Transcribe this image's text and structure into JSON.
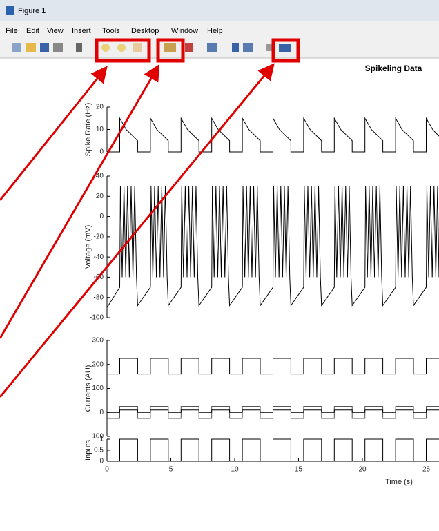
{
  "window": {
    "title": "Figure 1",
    "menu": [
      "File",
      "Edit",
      "View",
      "Insert",
      "Tools",
      "Desktop",
      "Window",
      "Help"
    ]
  },
  "chart_data": [
    {
      "type": "line",
      "title": "Spikeling Data",
      "ylabel": "Spike Rate (Hz)",
      "xlim": [
        0,
        26
      ],
      "ylim": [
        0,
        20
      ],
      "yticks": [
        0,
        10,
        20
      ],
      "x": [
        0,
        1,
        1,
        1.5,
        2.4,
        2.4,
        3.4,
        3.4,
        3.9,
        4.8,
        4.8,
        5.8,
        5.8,
        6.3,
        7.2,
        7.2,
        8.2,
        8.2,
        8.7,
        9.6,
        9.6,
        10.6,
        10.6,
        11.1,
        12,
        12,
        13,
        13,
        13.5,
        14.4,
        14.4,
        15.4,
        15.4,
        15.9,
        16.8,
        16.8,
        17.8,
        17.8,
        18.3,
        19.2,
        19.2,
        20.2,
        20.2,
        20.7,
        21.6,
        21.6,
        22.6,
        22.6,
        23.1,
        24,
        24,
        25,
        25,
        25.5,
        26
      ],
      "series": [
        {
          "color": "#000000",
          "values": [
            0,
            0,
            15,
            10,
            5,
            0,
            0,
            15,
            10,
            5,
            0,
            0,
            15,
            10,
            5,
            0,
            0,
            15,
            10,
            5,
            0,
            0,
            15,
            10,
            5,
            0,
            0,
            15,
            10,
            5,
            0,
            0,
            15,
            10,
            5,
            0,
            0,
            15,
            10,
            5,
            0,
            0,
            15,
            10,
            5,
            0,
            0,
            15,
            10,
            5,
            0,
            0,
            15,
            10,
            7
          ]
        }
      ]
    },
    {
      "type": "line",
      "ylabel": "Voltage (mV)",
      "xlim": [
        0,
        26
      ],
      "ylim": [
        -100,
        40
      ],
      "yticks": [
        -100,
        -80,
        -60,
        -40,
        -20,
        0,
        20,
        40
      ],
      "x": [
        0,
        0.5,
        1,
        1.05,
        1.19,
        1.33,
        1.47,
        1.61,
        1.75,
        1.89,
        2.03,
        2.17,
        2.31,
        2.4,
        3.4,
        3.45,
        3.59,
        3.73,
        3.87,
        4.01,
        4.15,
        4.29,
        4.43,
        4.57,
        4.71,
        4.8,
        5.8,
        5.85,
        5.99,
        6.13,
        6.27,
        6.41,
        6.55,
        6.69,
        6.83,
        6.97,
        7.11,
        7.2,
        8.2,
        8.25,
        8.39,
        8.53,
        8.67,
        8.81,
        8.95,
        9.09,
        9.23,
        9.37,
        9.51,
        9.6,
        10.6,
        10.65,
        10.79,
        10.93,
        11.07,
        11.21,
        11.35,
        11.49,
        11.63,
        11.77,
        11.91,
        12,
        13,
        13.05,
        13.19,
        13.33,
        13.47,
        13.61,
        13.75,
        13.89,
        14.03,
        14.17,
        14.31,
        14.4,
        15.4,
        15.45,
        15.59,
        15.73,
        15.87,
        16.01,
        16.15,
        16.29,
        16.43,
        16.57,
        16.71,
        16.8,
        17.8,
        17.85,
        17.99,
        18.13,
        18.27,
        18.41,
        18.55,
        18.69,
        18.83,
        18.97,
        19.11,
        19.2,
        20.2,
        20.25,
        20.39,
        20.53,
        20.67,
        20.81,
        20.95,
        21.09,
        21.23,
        21.37,
        21.51,
        21.6,
        22.6,
        22.65,
        22.79,
        22.93,
        23.07,
        23.21,
        23.35,
        23.49,
        23.63,
        23.77,
        23.91,
        24,
        25,
        25.05,
        25.19,
        25.33,
        25.47,
        25.61,
        25.75,
        25.89,
        26
      ],
      "series": [
        {
          "color": "#000000",
          "values": [
            -90,
            -80,
            -70,
            30,
            -60,
            30,
            -60,
            30,
            -60,
            30,
            -60,
            30,
            -60,
            -88,
            -70,
            30,
            -60,
            30,
            -60,
            30,
            -60,
            30,
            -60,
            30,
            -60,
            -88,
            -70,
            30,
            -60,
            30,
            -60,
            30,
            -60,
            30,
            -60,
            30,
            -60,
            -88,
            -70,
            30,
            -60,
            30,
            -60,
            30,
            -60,
            30,
            -60,
            30,
            -60,
            -88,
            -70,
            30,
            -60,
            30,
            -60,
            30,
            -60,
            30,
            -60,
            30,
            -60,
            -88,
            -70,
            30,
            -60,
            30,
            -60,
            30,
            -60,
            30,
            -60,
            30,
            -60,
            -88,
            -70,
            30,
            -60,
            30,
            -60,
            30,
            -60,
            30,
            -60,
            30,
            -60,
            -88,
            -70,
            30,
            -60,
            30,
            -60,
            30,
            -60,
            30,
            -60,
            30,
            -60,
            -88,
            -70,
            30,
            -60,
            30,
            -60,
            30,
            -60,
            30,
            -60,
            30,
            -60,
            -88,
            -70,
            30,
            -60,
            30,
            -60,
            30,
            -60,
            30,
            -60,
            30,
            -60,
            -88,
            -70,
            30,
            -60,
            30,
            -60,
            30,
            -60,
            30,
            -60
          ]
        }
      ]
    },
    {
      "type": "line",
      "ylabel": "Currents (AU)",
      "xlim": [
        0,
        26
      ],
      "ylim": [
        -100,
        300
      ],
      "yticks": [
        -100,
        0,
        100,
        200,
        300
      ],
      "x": [
        0,
        1,
        1,
        2.4,
        2.4,
        3.4,
        3.4,
        4.8,
        4.8,
        5.8,
        5.8,
        7.2,
        7.2,
        8.2,
        8.2,
        9.6,
        9.6,
        10.6,
        10.6,
        12,
        12,
        13,
        13,
        14.4,
        14.4,
        15.4,
        15.4,
        16.8,
        16.8,
        17.8,
        17.8,
        19.2,
        19.2,
        20.2,
        20.2,
        21.6,
        21.6,
        22.6,
        22.6,
        24,
        24,
        25,
        25,
        26
      ],
      "series": [
        {
          "color": "#000000",
          "values": [
            160,
            160,
            225,
            225,
            160,
            160,
            225,
            225,
            160,
            160,
            225,
            225,
            160,
            160,
            225,
            225,
            160,
            160,
            225,
            225,
            160,
            160,
            225,
            225,
            160,
            160,
            225,
            225,
            160,
            160,
            225,
            225,
            160,
            160,
            225,
            225,
            160,
            160,
            225,
            225,
            160,
            160,
            225,
            225
          ]
        },
        {
          "color": "#555555",
          "values": [
            -25,
            -25,
            25,
            25,
            -25,
            -25,
            25,
            25,
            -25,
            -25,
            25,
            25,
            -25,
            -25,
            25,
            25,
            -25,
            -25,
            25,
            25,
            -25,
            -25,
            25,
            25,
            -25,
            -25,
            25,
            25,
            -25,
            -25,
            25,
            25,
            -25,
            -25,
            25,
            25,
            -25,
            -25,
            25,
            25,
            -25,
            -25,
            25,
            25
          ]
        },
        {
          "color": "#000000",
          "values": [
            0,
            0,
            10,
            10,
            0,
            0,
            10,
            10,
            0,
            0,
            10,
            10,
            0,
            0,
            10,
            10,
            0,
            0,
            10,
            10,
            0,
            0,
            10,
            10,
            0,
            0,
            10,
            10,
            0,
            0,
            10,
            10,
            0,
            0,
            10,
            10,
            0,
            0,
            10,
            10,
            0,
            0,
            10,
            10
          ]
        }
      ]
    },
    {
      "type": "line",
      "ylabel": "Inputs",
      "xlabel": "Time (s)",
      "xlim": [
        0,
        26
      ],
      "ylim": [
        0,
        1
      ],
      "yticks": [
        0,
        0.5,
        1
      ],
      "xticks": [
        0,
        5,
        10,
        15,
        20,
        25
      ],
      "x": [
        0,
        1,
        1,
        2.4,
        2.4,
        3.4,
        3.4,
        4.8,
        4.8,
        5.8,
        5.8,
        7.2,
        7.2,
        8.2,
        8.2,
        9.6,
        9.6,
        10.6,
        10.6,
        12,
        12,
        13,
        13,
        14.4,
        14.4,
        15.4,
        15.4,
        16.8,
        16.8,
        17.8,
        17.8,
        19.2,
        19.2,
        20.2,
        20.2,
        21.6,
        21.6,
        22.6,
        22.6,
        24,
        24,
        25,
        25,
        26
      ],
      "series": [
        {
          "color": "#000000",
          "values": [
            0,
            0,
            1,
            1,
            0,
            0,
            1,
            1,
            0,
            0,
            1,
            1,
            0,
            0,
            1,
            1,
            0,
            0,
            1,
            1,
            0,
            0,
            1,
            1,
            0,
            0,
            1,
            1,
            0,
            0,
            1,
            1,
            0,
            0,
            1,
            1,
            0,
            0,
            1,
            1,
            0,
            0,
            1,
            1
          ]
        }
      ]
    }
  ]
}
